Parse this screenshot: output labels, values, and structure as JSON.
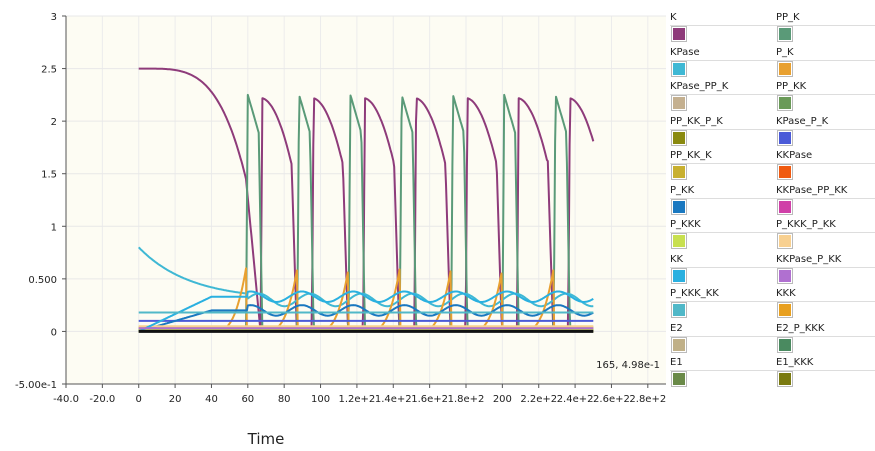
{
  "readout": "165, 4.98e-1",
  "chart_data": {
    "type": "line",
    "xlabel": "Time",
    "ylabel": "",
    "xlim": [
      -40,
      290
    ],
    "ylim": [
      -0.5,
      3
    ],
    "x_tick_labels": [
      "-40.0",
      "-20.0",
      "0",
      "20",
      "40",
      "60",
      "80",
      "100",
      "1.2e+2",
      "1.4e+2",
      "1.6e+2",
      "1.8e+2",
      "200",
      "2.2e+2",
      "2.4e+2",
      "2.6e+2",
      "2.8e+2"
    ],
    "x_tick_values": [
      -40,
      -20,
      0,
      20,
      40,
      60,
      80,
      100,
      120,
      140,
      160,
      180,
      200,
      220,
      240,
      260,
      280
    ],
    "y_tick_labels": [
      "-5.00e-1",
      "0",
      "0.500",
      "1",
      "1.5",
      "2",
      "2.5",
      "3"
    ],
    "y_tick_values": [
      -0.5,
      0,
      0.5,
      1,
      1.5,
      2,
      2.5,
      3
    ],
    "background": "#fdfcf3",
    "series": [
      {
        "name": "K",
        "color": "#8e3b7a",
        "kind": "decay_osc",
        "params": {
          "start": 2.5,
          "peak": 2.22,
          "offset": 8,
          "low": 0.0
        }
      },
      {
        "name": "PP_K",
        "color": "#5a9a78",
        "kind": "spike",
        "params": {
          "peak": 2.25,
          "offset": 0
        }
      },
      {
        "name": "KPase",
        "color": "#3fb8d4",
        "kind": "start_decay",
        "params": {
          "start": 0.8,
          "level": 0.3
        }
      },
      {
        "name": "P_K",
        "color": "#e8a030",
        "kind": "ramp",
        "params": {
          "peak": 0.6
        }
      },
      {
        "name": "KPase_PP_K",
        "color": "#c4b090",
        "kind": "flat",
        "params": {
          "level": 0.03
        }
      },
      {
        "name": "PP_KK",
        "color": "#6a9a58",
        "kind": "flat",
        "params": {
          "level": 0.02
        }
      },
      {
        "name": "PP_KK_P_K",
        "color": "#8a8a10",
        "kind": "flat",
        "params": {
          "level": 0.01
        }
      },
      {
        "name": "KPase_P_K",
        "color": "#4a5ad8",
        "kind": "flat",
        "params": {
          "level": 0.1
        }
      },
      {
        "name": "PP_KK_K",
        "color": "#c8b030",
        "kind": "flat",
        "params": {
          "level": 0.04
        }
      },
      {
        "name": "KKPase",
        "color": "#f05a10",
        "kind": "flat",
        "params": {
          "level": 0.0
        }
      },
      {
        "name": "P_KK",
        "color": "#1a78c0",
        "kind": "osc_mid",
        "params": {
          "level": 0.2
        }
      },
      {
        "name": "KKPase_PP_KK",
        "color": "#d040a8",
        "kind": "flat",
        "params": {
          "level": 0.01
        }
      },
      {
        "name": "P_KKK",
        "color": "#c8e050",
        "kind": "flat",
        "params": {
          "level": 0.02
        }
      },
      {
        "name": "P_KKK_P_KK",
        "color": "#f8d090",
        "kind": "flat",
        "params": {
          "level": 0.05
        }
      },
      {
        "name": "KK",
        "color": "#2ab0e0",
        "kind": "osc_mid",
        "params": {
          "level": 0.33
        }
      },
      {
        "name": "KKPase_P_KK",
        "color": "#b070d0",
        "kind": "flat",
        "params": {
          "level": 0.03
        }
      },
      {
        "name": "P_KKK_KK",
        "color": "#50b8c8",
        "kind": "flat",
        "params": {
          "level": 0.18
        }
      },
      {
        "name": "KKK",
        "color": "#e8a020",
        "kind": "flat",
        "params": {
          "level": 0.0
        }
      },
      {
        "name": "E2",
        "color": "#c0b088",
        "kind": "flat",
        "params": {
          "level": 0.0
        }
      },
      {
        "name": "E2_P_KKK",
        "color": "#4a8a60",
        "kind": "flat",
        "params": {
          "level": 0.0
        }
      },
      {
        "name": "E1",
        "color": "#6a8a48",
        "kind": "flat",
        "params": {
          "level": 0.0
        }
      },
      {
        "name": "E1_KKK",
        "color": "#7a7a10",
        "kind": "flat",
        "params": {
          "level": 0.0
        }
      }
    ]
  }
}
